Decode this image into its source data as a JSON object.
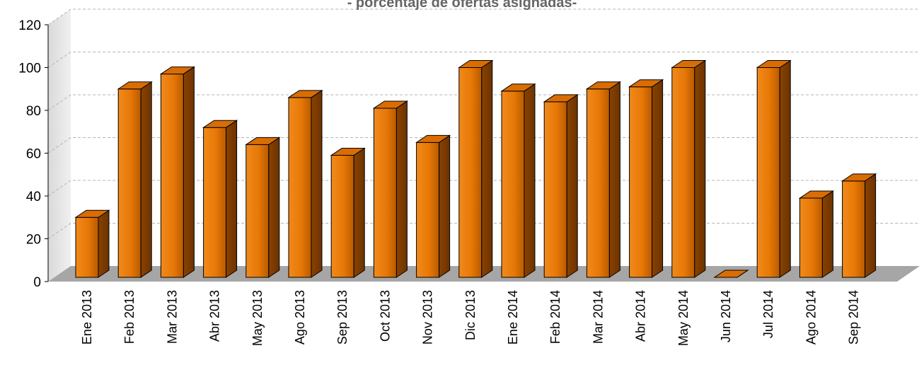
{
  "chart_data": {
    "type": "bar",
    "title": "- porcentaje de ofertas asignadas-",
    "xlabel": "",
    "ylabel": "",
    "ylim": [
      0,
      120
    ],
    "yticks": [
      0,
      20,
      40,
      60,
      80,
      100,
      120
    ],
    "grid": true,
    "legend": "none",
    "categories": [
      "Ene 2013",
      "Feb 2013",
      "Mar 2013",
      "Abr 2013",
      "May 2013",
      "Ago 2013",
      "Sep 2013",
      "Oct 2013",
      "Nov 2013",
      "Dic 2013",
      "Ene 2014",
      "Feb 2014",
      "Mar 2014",
      "Abr 2014",
      "May 2014",
      "Jun 2014",
      "Jul 2014",
      "Ago 2014",
      "Sep 2014"
    ],
    "values": [
      30,
      90,
      97,
      72,
      64,
      86,
      59,
      81,
      65,
      100,
      89,
      84,
      90,
      91,
      100,
      2,
      100,
      39,
      47
    ],
    "colors": {
      "bar_front": "#e77806",
      "bar_side": "#7a3a00",
      "bar_top": "#d96d04",
      "bar_outline": "#000000",
      "floor": "#a6a6a6",
      "wall": "#e6e6e6",
      "grid": "#b3b3b3",
      "title": "#666666"
    }
  }
}
